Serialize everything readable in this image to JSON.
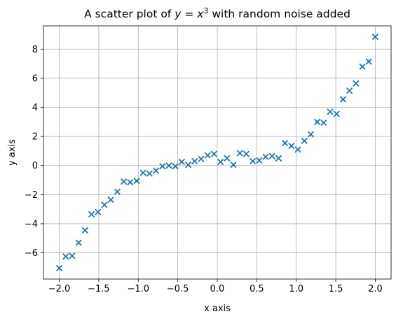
{
  "chart_data": {
    "type": "scatter",
    "title": {
      "prefix": "A scatter plot of ",
      "var": "y",
      "eq": " = ",
      "base": "x",
      "exp": "3",
      "suffix": " with random noise added"
    },
    "xlabel": "x axis",
    "ylabel": "y axis",
    "xlim": [
      -2.2,
      2.2
    ],
    "ylim": [
      -7.8,
      9.6
    ],
    "xticks": [
      -2.0,
      -1.5,
      -1.0,
      -0.5,
      0.0,
      0.5,
      1.0,
      1.5,
      2.0
    ],
    "xtick_labels": [
      "−2.0",
      "−1.5",
      "−1.0",
      "−0.5",
      "0.0",
      "0.5",
      "1.0",
      "1.5",
      "2.0"
    ],
    "yticks": [
      -6,
      -4,
      -2,
      0,
      2,
      4,
      6,
      8
    ],
    "ytick_labels": [
      "−6",
      "−4",
      "−2",
      "0",
      "2",
      "4",
      "6",
      "8"
    ],
    "grid": true,
    "marker": "x",
    "color": "#1f77b4",
    "series": [
      {
        "x": [
          -2.0,
          -1.918,
          -1.837,
          -1.755,
          -1.673,
          -1.592,
          -1.51,
          -1.429,
          -1.347,
          -1.265,
          -1.184,
          -1.102,
          -1.02,
          -0.939,
          -0.857,
          -0.776,
          -0.694,
          -0.612,
          -0.531,
          -0.449,
          -0.367,
          -0.286,
          -0.204,
          -0.122,
          -0.041,
          0.041,
          0.122,
          0.204,
          0.286,
          0.367,
          0.449,
          0.531,
          0.612,
          0.694,
          0.776,
          0.857,
          0.939,
          1.02,
          1.102,
          1.184,
          1.265,
          1.347,
          1.429,
          1.51,
          1.592,
          1.673,
          1.755,
          1.837,
          1.918,
          2.0
        ],
        "y": [
          -7.05,
          -6.25,
          -6.2,
          -5.3,
          -4.45,
          -3.35,
          -3.2,
          -2.7,
          -2.35,
          -1.8,
          -1.1,
          -1.15,
          -1.05,
          -0.5,
          -0.55,
          -0.35,
          -0.05,
          0.0,
          -0.05,
          0.25,
          0.05,
          0.3,
          0.45,
          0.7,
          0.8,
          0.25,
          0.5,
          0.05,
          0.85,
          0.8,
          0.3,
          0.35,
          0.6,
          0.65,
          0.5,
          1.55,
          1.35,
          1.1,
          1.7,
          2.15,
          3.0,
          2.95,
          3.7,
          3.55,
          4.55,
          5.15,
          5.65,
          6.8,
          7.15,
          8.85
        ]
      }
    ]
  }
}
